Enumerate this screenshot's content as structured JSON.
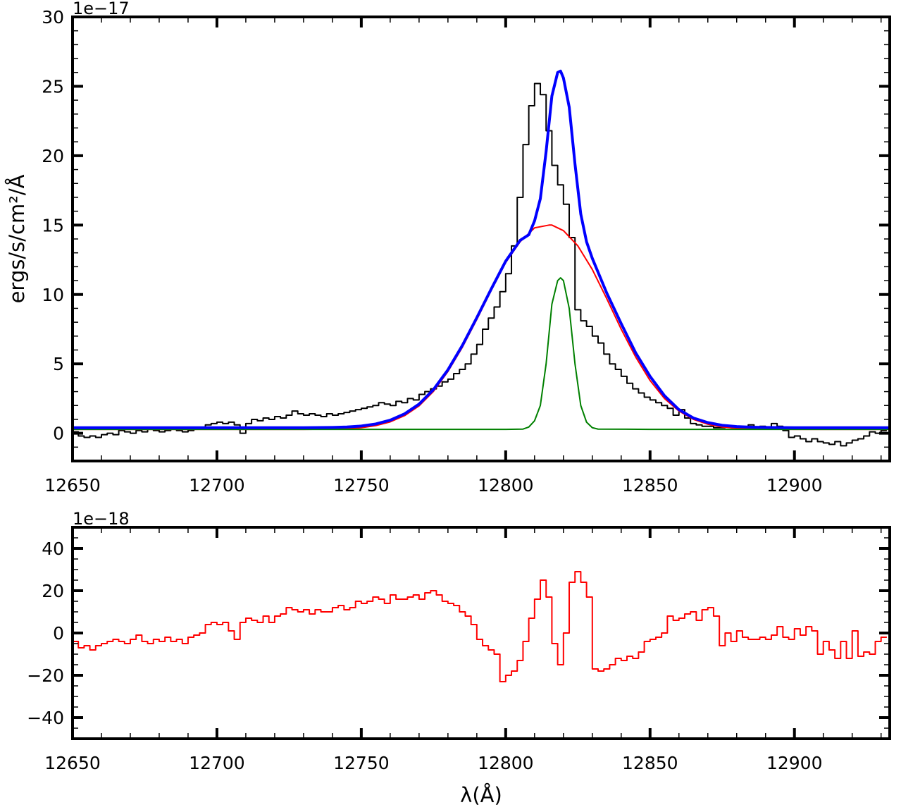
{
  "chart_data": [
    {
      "type": "line",
      "xlabel": "",
      "ylabel": "ergs/s/cm²/Å",
      "scale_offset": "1e−17",
      "xlim": [
        12650,
        12933
      ],
      "ylim": [
        -2,
        30
      ],
      "xticks": [
        "12650",
        "12700",
        "12750",
        "12800",
        "12850",
        "12900"
      ],
      "yticks": [
        "0",
        "5",
        "10",
        "15",
        "20",
        "25",
        "30"
      ],
      "grid": false,
      "series": [
        {
          "style": "step",
          "color": "#000000",
          "x": [
            12650,
            12652,
            12654,
            12656,
            12658,
            12660,
            12662,
            12664,
            12666,
            12668,
            12670,
            12672,
            12674,
            12676,
            12678,
            12680,
            12682,
            12684,
            12686,
            12688,
            12690,
            12692,
            12694,
            12696,
            12698,
            12700,
            12702,
            12704,
            12706,
            12708,
            12710,
            12712,
            12714,
            12716,
            12718,
            12720,
            12722,
            12724,
            12726,
            12728,
            12730,
            12732,
            12734,
            12736,
            12738,
            12740,
            12742,
            12744,
            12746,
            12748,
            12750,
            12752,
            12754,
            12756,
            12758,
            12760,
            12762,
            12764,
            12766,
            12768,
            12770,
            12772,
            12774,
            12776,
            12778,
            12780,
            12782,
            12784,
            12786,
            12788,
            12790,
            12792,
            12794,
            12796,
            12798,
            12800,
            12802,
            12804,
            12806,
            12808,
            12810,
            12812,
            12814,
            12816,
            12818,
            12820,
            12822,
            12824,
            12826,
            12828,
            12830,
            12832,
            12834,
            12836,
            12838,
            12840,
            12842,
            12844,
            12846,
            12848,
            12850,
            12852,
            12854,
            12856,
            12858,
            12860,
            12862,
            12864,
            12866,
            12868,
            12870,
            12872,
            12874,
            12876,
            12878,
            12880,
            12882,
            12884,
            12886,
            12888,
            12890,
            12892,
            12894,
            12896,
            12898,
            12900,
            12902,
            12904,
            12906,
            12908,
            12910,
            12912,
            12914,
            12916,
            12918,
            12920,
            12922,
            12924,
            12926,
            12928,
            12930
          ],
          "y": [
            0.1,
            -0.2,
            -0.3,
            -0.2,
            -0.3,
            -0.1,
            0.0,
            -0.1,
            0.2,
            0.1,
            0.0,
            0.2,
            0.1,
            0.3,
            0.2,
            0.1,
            0.2,
            0.3,
            0.2,
            0.1,
            0.2,
            0.3,
            0.4,
            0.6,
            0.7,
            0.8,
            0.7,
            0.8,
            0.6,
            0.0,
            0.7,
            1.0,
            0.9,
            1.1,
            1.0,
            1.2,
            1.1,
            1.3,
            1.6,
            1.4,
            1.3,
            1.4,
            1.3,
            1.2,
            1.4,
            1.3,
            1.4,
            1.5,
            1.6,
            1.7,
            1.8,
            1.9,
            2.0,
            2.2,
            2.1,
            2.0,
            2.3,
            2.2,
            2.5,
            2.4,
            2.8,
            3.0,
            3.2,
            3.4,
            3.7,
            3.9,
            4.3,
            4.6,
            5.0,
            5.7,
            6.4,
            7.5,
            8.3,
            9.1,
            10.2,
            11.5,
            13.5,
            17.0,
            20.8,
            23.6,
            25.2,
            24.4,
            21.8,
            19.3,
            17.9,
            16.5,
            14.1,
            8.9,
            8.1,
            7.7,
            7.0,
            6.5,
            5.7,
            5.0,
            4.6,
            4.1,
            3.6,
            3.2,
            2.9,
            2.6,
            2.4,
            2.2,
            2.0,
            1.8,
            1.3,
            1.7,
            1.1,
            0.7,
            0.6,
            0.5,
            0.5,
            0.4,
            0.4,
            0.5,
            0.4,
            0.3,
            0.4,
            0.6,
            0.3,
            0.5,
            0.4,
            0.7,
            0.5,
            0.2,
            -0.3,
            -0.2,
            -0.4,
            -0.6,
            -0.4,
            -0.6,
            -0.7,
            -0.8,
            -0.6,
            -0.9,
            -0.7,
            -0.5,
            -0.4,
            -0.2,
            0.1,
            0.0,
            0.2
          ]
        },
        {
          "style": "line",
          "color": "#ff0000",
          "x": [
            12650,
            12660,
            12670,
            12680,
            12690,
            12700,
            12710,
            12720,
            12730,
            12740,
            12745,
            12750,
            12755,
            12760,
            12765,
            12770,
            12775,
            12780,
            12785,
            12790,
            12795,
            12800,
            12805,
            12810,
            12815,
            12816,
            12820,
            12825,
            12830,
            12835,
            12840,
            12845,
            12850,
            12855,
            12860,
            12865,
            12870,
            12875,
            12880,
            12885,
            12890,
            12900,
            12910,
            12920,
            12933
          ],
          "y": [
            0.28,
            0.28,
            0.28,
            0.28,
            0.28,
            0.28,
            0.28,
            0.28,
            0.28,
            0.3,
            0.33,
            0.4,
            0.55,
            0.82,
            1.27,
            1.97,
            3.02,
            4.45,
            6.2,
            8.2,
            10.3,
            12.3,
            13.8,
            14.8,
            15.0,
            15.0,
            14.6,
            13.5,
            11.8,
            9.7,
            7.5,
            5.5,
            3.8,
            2.5,
            1.6,
            1.0,
            0.65,
            0.45,
            0.36,
            0.32,
            0.3,
            0.28,
            0.28,
            0.28,
            0.28
          ]
        },
        {
          "style": "line",
          "color": "#008000",
          "x": [
            12650,
            12700,
            12750,
            12800,
            12806,
            12808,
            12810,
            12812,
            12814,
            12816,
            12818,
            12819,
            12820,
            12822,
            12824,
            12826,
            12828,
            12830,
            12832,
            12850,
            12900,
            12933
          ],
          "y": [
            0.28,
            0.28,
            0.28,
            0.28,
            0.3,
            0.45,
            0.9,
            2.0,
            5.0,
            9.3,
            11.0,
            11.2,
            11.0,
            9.0,
            5.0,
            2.0,
            0.8,
            0.4,
            0.3,
            0.28,
            0.28,
            0.28
          ]
        },
        {
          "style": "line",
          "color": "#0000ff",
          "x": [
            12650,
            12660,
            12670,
            12680,
            12690,
            12700,
            12710,
            12720,
            12730,
            12740,
            12745,
            12750,
            12755,
            12760,
            12765,
            12770,
            12775,
            12780,
            12785,
            12790,
            12795,
            12800,
            12805,
            12808,
            12810,
            12812,
            12814,
            12816,
            12818,
            12819,
            12820,
            12822,
            12824,
            12826,
            12828,
            12830,
            12835,
            12840,
            12845,
            12850,
            12855,
            12860,
            12865,
            12870,
            12875,
            12880,
            12885,
            12890,
            12900,
            12910,
            12920,
            12933
          ],
          "y": [
            0.4,
            0.4,
            0.4,
            0.4,
            0.4,
            0.4,
            0.4,
            0.4,
            0.4,
            0.42,
            0.45,
            0.52,
            0.67,
            0.94,
            1.4,
            2.1,
            3.15,
            4.57,
            6.33,
            8.33,
            10.4,
            12.4,
            13.9,
            14.3,
            15.3,
            16.9,
            20.3,
            24.3,
            26.0,
            26.1,
            25.6,
            23.5,
            19.4,
            15.8,
            13.8,
            12.6,
            10.1,
            7.9,
            5.8,
            4.1,
            2.7,
            1.7,
            1.1,
            0.77,
            0.57,
            0.48,
            0.44,
            0.42,
            0.4,
            0.4,
            0.4,
            0.4
          ]
        }
      ]
    },
    {
      "type": "line",
      "xlabel": "λ(Å)",
      "ylabel": "",
      "scale_offset": "1e−18",
      "xlim": [
        12650,
        12933
      ],
      "ylim": [
        -50,
        50
      ],
      "xticks": [
        "12650",
        "12700",
        "12750",
        "12800",
        "12850",
        "12900"
      ],
      "yticks": [
        "−40",
        "−20",
        "0",
        "20",
        "40"
      ],
      "grid": false,
      "series": [
        {
          "style": "step",
          "color": "#ff0000",
          "x": [
            12650,
            12652,
            12654,
            12656,
            12658,
            12660,
            12662,
            12664,
            12666,
            12668,
            12670,
            12672,
            12674,
            12676,
            12678,
            12680,
            12682,
            12684,
            12686,
            12688,
            12690,
            12692,
            12694,
            12696,
            12698,
            12700,
            12702,
            12704,
            12706,
            12708,
            12710,
            12712,
            12714,
            12716,
            12718,
            12720,
            12722,
            12724,
            12726,
            12728,
            12730,
            12732,
            12734,
            12736,
            12738,
            12740,
            12742,
            12744,
            12746,
            12748,
            12750,
            12752,
            12754,
            12756,
            12758,
            12760,
            12762,
            12764,
            12766,
            12768,
            12770,
            12772,
            12774,
            12776,
            12778,
            12780,
            12782,
            12784,
            12786,
            12788,
            12790,
            12792,
            12794,
            12796,
            12798,
            12800,
            12802,
            12804,
            12806,
            12808,
            12810,
            12812,
            12814,
            12816,
            12818,
            12820,
            12822,
            12824,
            12826,
            12828,
            12830,
            12832,
            12834,
            12836,
            12838,
            12840,
            12842,
            12844,
            12846,
            12848,
            12850,
            12852,
            12854,
            12856,
            12858,
            12860,
            12862,
            12864,
            12866,
            12868,
            12870,
            12872,
            12874,
            12876,
            12878,
            12880,
            12882,
            12884,
            12886,
            12888,
            12890,
            12892,
            12894,
            12896,
            12898,
            12900,
            12902,
            12904,
            12906,
            12908,
            12910,
            12912,
            12914,
            12916,
            12918,
            12920,
            12922,
            12924,
            12926,
            12928,
            12930
          ],
          "y": [
            -4,
            -7,
            -6,
            -8,
            -6,
            -5,
            -4,
            -3,
            -4,
            -5,
            -3,
            -1,
            -4,
            -5,
            -3,
            -4,
            -2,
            -4,
            -3,
            -5,
            -2,
            -1,
            0,
            4,
            5,
            4,
            5,
            1,
            -3,
            5,
            7,
            6,
            5,
            8,
            5,
            8,
            9,
            12,
            11,
            10,
            11,
            9,
            11,
            10,
            10,
            12,
            13,
            11,
            12,
            15,
            14,
            15,
            17,
            16,
            14,
            18,
            16,
            16,
            17,
            18,
            16,
            19,
            20,
            18,
            15,
            14,
            13,
            10,
            8,
            4,
            -3,
            -6,
            -8,
            -10,
            -23,
            -20,
            -18,
            -13,
            -4,
            7,
            16,
            25,
            17,
            -5,
            -15,
            0,
            24,
            29,
            24,
            17,
            -17,
            -18,
            -17,
            -15,
            -12,
            -13,
            -11,
            -12,
            -9,
            -4,
            -3,
            -2,
            0,
            8,
            6,
            7,
            9,
            10,
            6,
            11,
            12,
            8,
            -6,
            0,
            -4,
            1,
            -2,
            -3,
            -3,
            -2,
            -3,
            -1,
            3,
            -2,
            -3,
            2,
            -1,
            3,
            1,
            -10,
            -4,
            -8,
            -12,
            -4,
            -12,
            1,
            -11,
            -9,
            -10,
            -4,
            -2
          ]
        }
      ]
    }
  ]
}
